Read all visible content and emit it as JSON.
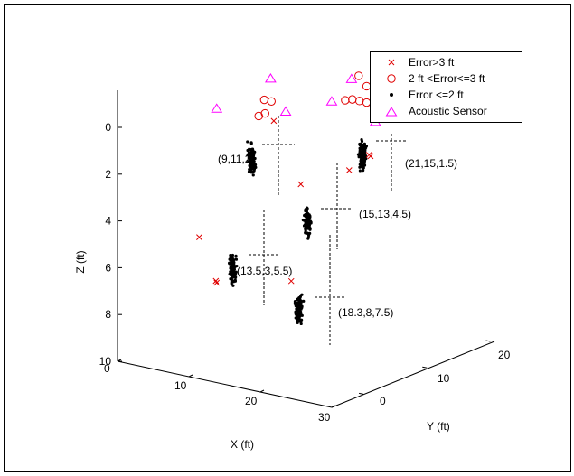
{
  "chart_data": {
    "type": "scatter",
    "projection": "3d",
    "xlabel": "X (ft)",
    "ylabel": "Y (ft)",
    "zlabel": "Z (ft)",
    "x_ticks": [
      "0",
      "10",
      "20",
      "30"
    ],
    "y_ticks": [
      "0",
      "10",
      "20"
    ],
    "z_ticks": [
      "0",
      "2",
      "4",
      "6",
      "8",
      "10"
    ],
    "xlim": [
      0,
      30
    ],
    "ylim": [
      -5,
      22
    ],
    "zlim": [
      -1,
      10
    ],
    "z_reversed": true,
    "grid": false,
    "legend_position": "top-right",
    "series": [
      {
        "name": "Error>3 ft",
        "marker": "x",
        "color": "#e00000",
        "points": [
          [
            23,
            14,
            1.3
          ],
          [
            21,
            16,
            1.6
          ],
          [
            20,
            14,
            2.1
          ],
          [
            13,
            10,
            0
          ],
          [
            7,
            5,
            4.8
          ],
          [
            12,
            2,
            6.0
          ],
          [
            13,
            1,
            5.9
          ],
          [
            19,
            6,
            6.0
          ],
          [
            15,
            12,
            2.8
          ]
        ]
      },
      {
        "name": "2 ft <Error<=3 ft",
        "marker": "o",
        "color": "#e00000",
        "points": [
          [
            9,
            13,
            -0.3
          ],
          [
            10,
            13,
            -0.3
          ],
          [
            10,
            12,
            0.1
          ],
          [
            10,
            11,
            0.1
          ],
          [
            15,
            19,
            0.0
          ],
          [
            16,
            19,
            -0.1
          ],
          [
            17,
            19,
            -0.1
          ],
          [
            18,
            19,
            -0.1
          ],
          [
            19,
            20,
            -0.1
          ],
          [
            19,
            19,
            0.0
          ],
          [
            20,
            19,
            0.0
          ],
          [
            16,
            20,
            -1.0
          ],
          [
            18,
            19,
            -0.8
          ]
        ]
      },
      {
        "name": "Error <=2 ft",
        "marker": ".",
        "color": "#000000",
        "clusters": [
          {
            "label": "(9,11,2)",
            "center": [
              9,
              11,
              2
            ]
          },
          {
            "label": "(21,15,1.5)",
            "center": [
              21,
              15,
              1.5
            ]
          },
          {
            "label": "(15,13,4.5)",
            "center": [
              15,
              13,
              4.5
            ]
          },
          {
            "label": "(13.5,3,5.5)",
            "center": [
              13.5,
              3,
              5.5
            ]
          },
          {
            "label": "(18.3,8,7.5)",
            "center": [
              18.3,
              8,
              7.5
            ]
          }
        ]
      },
      {
        "name": "Acoustic Sensor",
        "marker": "^",
        "color": "#ff00ff",
        "points": [
          [
            5,
            10,
            0
          ],
          [
            9,
            14,
            -1.1
          ],
          [
            12,
            13,
            0
          ],
          [
            14,
            18,
            0
          ],
          [
            21,
            17,
            0.3
          ],
          [
            15,
            20,
            -0.8
          ]
        ]
      }
    ]
  }
}
